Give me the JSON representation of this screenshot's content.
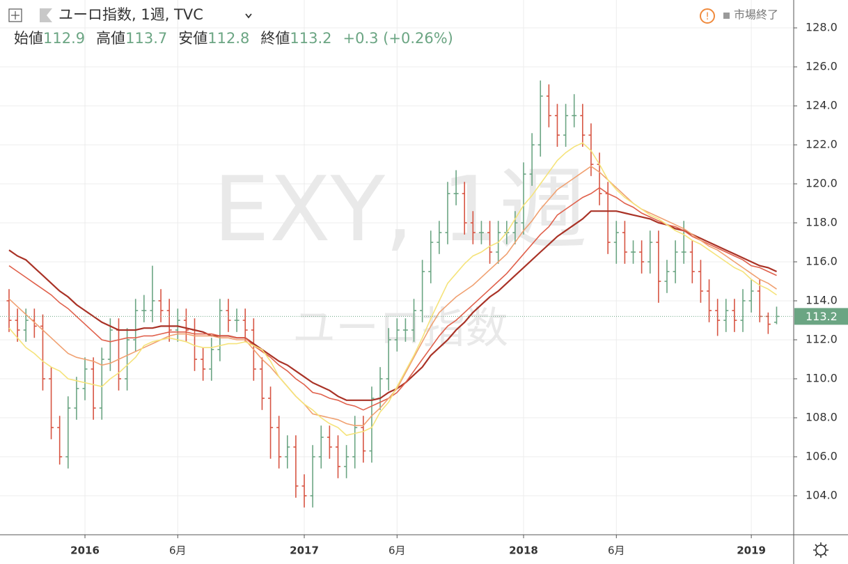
{
  "chart_data": {
    "type": "ohlc",
    "title": "ユーロ指数, 1週, TVC",
    "status": "市場終了",
    "ohlc_labels": [
      "始値",
      "高値",
      "安値",
      "終値"
    ],
    "change": "+0.3 (+0.26%)",
    "watermark": {
      "symbol": "EXY, 1週",
      "name": "ユーロ指数"
    },
    "up_color": "#6ba583",
    "down_color": "#d75442",
    "categories": [
      null,
      null,
      null,
      null,
      null,
      null,
      null,
      null,
      null,
      "2016",
      null,
      null,
      null,
      null,
      null,
      null,
      null,
      null,
      null,
      null,
      "6月",
      null,
      null,
      null,
      null,
      null,
      null,
      null,
      null,
      null,
      null,
      null,
      null,
      null,
      null,
      "2017",
      null,
      null,
      null,
      null,
      null,
      null,
      null,
      null,
      null,
      null,
      "6月",
      null,
      null,
      null,
      null,
      null,
      null,
      null,
      null,
      null,
      null,
      null,
      null,
      null,
      null,
      "2018",
      null,
      null,
      null,
      null,
      null,
      null,
      null,
      null,
      null,
      null,
      "6月",
      null,
      null,
      null,
      null,
      null,
      null,
      null,
      null,
      null,
      null,
      null,
      null,
      null,
      null,
      null,
      "2019",
      null,
      null,
      null
    ],
    "open": [
      114,
      113,
      112.5,
      113,
      112.7,
      110,
      107.5,
      106,
      108.5,
      109.5,
      110.5,
      108.5,
      111,
      112.5,
      110,
      112,
      113.5,
      113.5,
      114,
      113.5,
      112.5,
      113,
      112.5,
      111,
      110.5,
      111.5,
      113.5,
      113,
      113,
      112.5,
      110.5,
      109,
      107.5,
      106,
      106.5,
      104.5,
      104,
      106,
      107,
      106.5,
      105.5,
      106,
      107.5,
      106.3,
      109,
      110,
      112,
      112.5,
      112.5,
      113.5,
      115.5,
      117,
      117.5,
      119.5,
      119.5,
      118,
      117.5,
      117.5,
      116.5,
      117.5,
      117.5,
      118,
      120.5,
      122,
      124.5,
      123.5,
      122.5,
      123.5,
      123.5,
      122.5,
      121,
      119.5,
      117,
      117.5,
      116.5,
      116.5,
      116,
      117,
      115,
      115.5,
      116.5,
      116.5,
      115.5,
      114.5,
      113.5,
      113,
      113.5,
      113,
      114,
      114.5,
      113.2,
      112.9
    ],
    "high": [
      114.6,
      113.6,
      113.6,
      113.6,
      113.3,
      110.6,
      108.1,
      109.1,
      110.1,
      111.1,
      111.1,
      111.6,
      113.1,
      113.1,
      112.6,
      114.1,
      114.3,
      115.8,
      114.6,
      114.1,
      113.6,
      113.6,
      113.1,
      111.6,
      112.1,
      114.1,
      114.1,
      113.6,
      113.6,
      113.1,
      111.1,
      109.6,
      108.1,
      107.1,
      107.1,
      105.1,
      106.6,
      107.6,
      107.6,
      107.1,
      106.6,
      108.1,
      108.1,
      109.6,
      110.6,
      112.6,
      113.1,
      113.1,
      114.1,
      116.1,
      117.6,
      118.1,
      120.1,
      120.7,
      120.1,
      118.6,
      118.1,
      118.1,
      118.1,
      118.1,
      118.6,
      121.1,
      122.6,
      125.3,
      125.1,
      124.1,
      124.1,
      124.6,
      124.1,
      123.1,
      121.6,
      120.1,
      118.1,
      118.1,
      117.1,
      117.1,
      117.6,
      117.6,
      116.1,
      117.1,
      118.1,
      117.1,
      116.1,
      115.1,
      114.1,
      114.1,
      114.1,
      114.6,
      115.1,
      115.1,
      113.4,
      113.7
    ],
    "low": [
      112.4,
      111.9,
      111.9,
      112.1,
      109.4,
      106.9,
      105.6,
      105.4,
      107.9,
      108.9,
      107.9,
      107.9,
      110.4,
      109.4,
      109.4,
      111.4,
      112.9,
      112.9,
      112.9,
      111.9,
      111.9,
      111.9,
      110.4,
      109.9,
      109.9,
      110.9,
      112.4,
      112.4,
      111.9,
      109.9,
      108.4,
      105.9,
      105.4,
      105.4,
      103.9,
      103.4,
      103.4,
      105.4,
      105.9,
      104.9,
      104.9,
      105.4,
      105.7,
      105.7,
      108.4,
      109.4,
      111.4,
      111.9,
      111.9,
      112.9,
      114.9,
      116.4,
      116.9,
      118.9,
      117.4,
      116.9,
      116.9,
      115.9,
      115.9,
      116.9,
      116.9,
      117.4,
      119.9,
      121.4,
      122.9,
      121.9,
      121.9,
      122.9,
      121.9,
      120.4,
      118.9,
      116.4,
      115.9,
      115.9,
      115.9,
      115.4,
      115.4,
      113.9,
      114.4,
      114.9,
      115.9,
      114.9,
      113.9,
      112.9,
      112.2,
      112.4,
      112.4,
      112.4,
      113.4,
      112.9,
      112.3,
      112.8
    ],
    "close": [
      113,
      112.5,
      113,
      112.7,
      110,
      107.5,
      106,
      108.5,
      109.5,
      110.5,
      108.5,
      111,
      112.5,
      110,
      112,
      113.5,
      113.5,
      114,
      113.5,
      112.5,
      113,
      112.5,
      111,
      110.5,
      111.5,
      113.5,
      113,
      113,
      112.5,
      110.5,
      109,
      107.5,
      106,
      106.5,
      104.5,
      104,
      106,
      107,
      106.5,
      105.5,
      106,
      107.5,
      106.3,
      109,
      110,
      112,
      112.5,
      112.5,
      113.5,
      115.5,
      117,
      117.5,
      119.5,
      119.5,
      118,
      117.5,
      117.5,
      116.5,
      117.5,
      117.5,
      118,
      120.5,
      122,
      124.5,
      123.5,
      122.5,
      123.5,
      123.5,
      122.5,
      121,
      119.5,
      117,
      117.5,
      116.5,
      116.5,
      116,
      117,
      115,
      115.5,
      116.5,
      116.5,
      115.5,
      114.5,
      113.5,
      113,
      113.5,
      113,
      114,
      114.5,
      113.2,
      112.8,
      113.2
    ],
    "series": [
      {
        "color": "#a93226",
        "values": [
          116.6,
          116.3,
          116.1,
          115.7,
          115.3,
          114.9,
          114.5,
          114.2,
          113.8,
          113.5,
          113.2,
          112.9,
          112.7,
          112.5,
          112.5,
          112.5,
          112.6,
          112.6,
          112.7,
          112.7,
          112.7,
          112.6,
          112.5,
          112.4,
          112.2,
          112.2,
          112.2,
          112.1,
          112.1,
          111.8,
          111.5,
          111.2,
          110.9,
          110.7,
          110.4,
          110.1,
          109.8,
          109.6,
          109.4,
          109.1,
          108.9,
          108.9,
          108.9,
          108.9,
          109,
          109.3,
          109.5,
          109.8,
          110.2,
          110.6,
          111.2,
          111.6,
          112,
          112.5,
          112.9,
          113.4,
          113.8,
          114.2,
          114.5,
          114.9,
          115.3,
          115.7,
          116.1,
          116.5,
          116.9,
          117.3,
          117.6,
          117.9,
          118.2,
          118.6,
          118.6,
          118.6,
          118.6,
          118.5,
          118.4,
          118.3,
          118.2,
          118,
          117.9,
          117.7,
          117.6,
          117.4,
          117.2,
          117,
          116.8,
          116.6,
          116.4,
          116.2,
          116,
          115.8,
          115.7,
          115.5
        ]
      },
      {
        "color": "#e0604b",
        "values": [
          115.8,
          115.5,
          115.2,
          114.9,
          114.6,
          114.3,
          113.9,
          113.6,
          113.2,
          112.8,
          112.4,
          112,
          111.9,
          112,
          112.1,
          112.1,
          112.2,
          112.2,
          112.3,
          112.4,
          112.4,
          112.4,
          112.3,
          112.3,
          112.3,
          112.2,
          112.2,
          112.1,
          112.1,
          111.7,
          111.4,
          111.1,
          110.7,
          110.4,
          110,
          109.7,
          109.3,
          109.2,
          109,
          108.9,
          108.7,
          108.6,
          108.4,
          108.6,
          108.8,
          109,
          109.3,
          109.8,
          110.4,
          111,
          111.6,
          112.2,
          112.7,
          113,
          113.4,
          113.8,
          114.2,
          114.6,
          115,
          115.4,
          115.9,
          116.4,
          116.9,
          117.4,
          117.8,
          118.4,
          118.7,
          119,
          119.3,
          119.5,
          119.8,
          119.5,
          119.3,
          119,
          118.8,
          118.5,
          118.3,
          118.1,
          117.9,
          117.8,
          117.6,
          117.3,
          117.1,
          116.9,
          116.7,
          116.5,
          116.3,
          116.1,
          115.8,
          115.7,
          115.5,
          115.3
        ]
      },
      {
        "color": "#f0a070",
        "values": [
          114.1,
          113.7,
          113.3,
          112.9,
          112.5,
          112.1,
          111.7,
          111.3,
          111.1,
          111,
          110.9,
          110.7,
          110.8,
          111,
          111.2,
          111.4,
          111.6,
          111.8,
          112,
          112.2,
          112.3,
          112.3,
          112.2,
          112.2,
          112.2,
          112.1,
          112.1,
          112,
          112,
          111.5,
          111,
          110.6,
          110.1,
          109.6,
          109.1,
          108.7,
          108.2,
          108.1,
          108,
          107.9,
          107.7,
          107.6,
          107.6,
          108.1,
          108.5,
          109,
          109.5,
          110.3,
          111.1,
          111.9,
          112.7,
          113.4,
          113.8,
          114.2,
          114.5,
          114.8,
          115.2,
          115.6,
          116,
          116.4,
          117,
          117.6,
          118.1,
          118.7,
          119.2,
          119.7,
          120,
          120.3,
          120.6,
          120.9,
          120.6,
          120.2,
          119.8,
          119.4,
          119,
          118.7,
          118.5,
          118.3,
          118.1,
          117.9,
          117.7,
          117.4,
          117.1,
          116.8,
          116.6,
          116.3,
          116,
          115.7,
          115.4,
          115.1,
          114.9,
          114.6
        ]
      },
      {
        "color": "#f5e37a",
        "values": [
          112.6,
          112.1,
          111.6,
          111.3,
          110.9,
          110.6,
          110.4,
          110,
          109.9,
          109.8,
          109.7,
          109.6,
          110,
          110.3,
          110.7,
          111.1,
          111.7,
          111.9,
          112,
          112.1,
          112,
          111.9,
          111.7,
          111.6,
          111.6,
          111.7,
          111.8,
          111.8,
          111.9,
          111.7,
          111.5,
          110.9,
          110.1,
          109.6,
          109.1,
          108.7,
          108.4,
          108,
          107.7,
          107.5,
          107.1,
          107.2,
          107.3,
          107.5,
          108.3,
          108.8,
          109.6,
          110.4,
          111.2,
          112.1,
          113.1,
          114,
          114.9,
          115.4,
          115.9,
          116.3,
          116.5,
          116.8,
          117,
          117.5,
          118.2,
          118.9,
          119.4,
          120,
          120.6,
          121.2,
          121.6,
          121.9,
          122.1,
          121.7,
          121,
          120.2,
          119.7,
          119.3,
          119,
          118.7,
          118.4,
          118.2,
          117.9,
          117.6,
          117.4,
          117.1,
          116.9,
          116.6,
          116.3,
          116,
          115.7,
          115.5,
          115.1,
          114.8,
          114.6,
          114.3
        ]
      }
    ],
    "ylim": [
      102,
      129.43
    ],
    "yticks": [
      {
        "value": 104,
        "label": "104.0"
      },
      {
        "value": 106,
        "label": "106.0"
      },
      {
        "value": 108,
        "label": "108.0"
      },
      {
        "value": 110,
        "label": "110.0"
      },
      {
        "value": 112,
        "label": "112.0"
      },
      {
        "value": 114,
        "label": "114.0"
      },
      {
        "value": 116,
        "label": "116.0"
      },
      {
        "value": 118,
        "label": "118.0"
      },
      {
        "value": 120,
        "label": "120.0"
      },
      {
        "value": 122,
        "label": "122.0"
      },
      {
        "value": 124,
        "label": "124.0"
      },
      {
        "value": 126,
        "label": "126.0"
      },
      {
        "value": 128,
        "label": "128.0"
      }
    ],
    "grid": true
  }
}
